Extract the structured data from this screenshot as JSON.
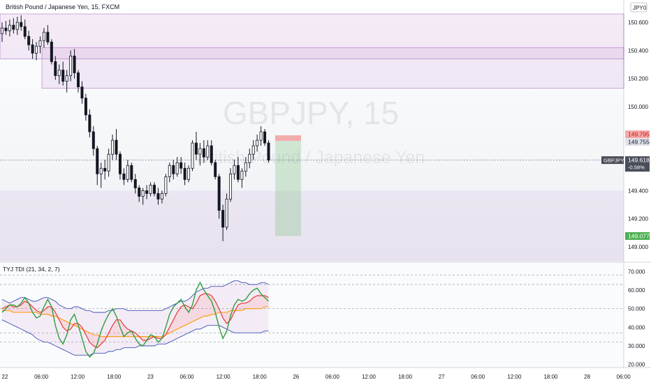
{
  "header": {
    "title": "British Pound / Japanese Yen, 15, FXCM",
    "currency_badge": "JPY",
    "currency_badge_suffix": "0"
  },
  "watermark": {
    "symbol": "GBPJPY, 15",
    "name": "British Pound / Japanese Yen"
  },
  "price_axis": {
    "ticks": [
      "150.600",
      "150.400",
      "150.200",
      "150.000",
      "149.400",
      "149.200",
      "149.000"
    ],
    "tick_values": [
      150.6,
      150.4,
      150.2,
      150.0,
      149.4,
      149.2,
      149.0
    ],
    "labels": {
      "stop": "149.795",
      "entry": "149.755",
      "symbol": "GBPJPY",
      "last": "149.618",
      "change": "-0.58%",
      "target": "149.077"
    },
    "label_values": {
      "stop": 149.795,
      "entry": 149.755,
      "last": 149.618,
      "target": 149.077
    }
  },
  "indicator": {
    "title": "TYJ TDI (21, 34, 2, 7)",
    "ticks": [
      "70.000",
      "60.000",
      "50.000",
      "40.000",
      "30.000",
      "20.000"
    ],
    "tick_values": [
      70,
      60,
      50,
      40,
      30,
      20
    ],
    "dashed_levels": [
      68,
      63,
      50,
      37,
      32
    ]
  },
  "time_axis": {
    "labels": [
      "22",
      "06:00",
      "12:00",
      "18:00",
      "23",
      "06:00",
      "12:00",
      "18:00",
      "26",
      "06:00",
      "12:00",
      "18:00",
      "27",
      "06:00",
      "12:00",
      "18:00",
      "28",
      "06:00"
    ]
  },
  "colors": {
    "up": "#131722",
    "zone_fill": "#9c27b0",
    "zone_border": "#7b1fa2",
    "stop": "#ef5350",
    "target": "#4caf50",
    "bb": "#3f51b5",
    "rsi": "#2e9e3a",
    "signal": "#e53935",
    "base": "#ff9800"
  },
  "chart_data": [
    {
      "type": "candlestick",
      "title": "British Pound / Japanese Yen, 15, FXCM",
      "ylim": [
        148.97,
        150.66
      ],
      "zones": [
        {
          "low": 150.13,
          "high": 150.42
        },
        {
          "low": 150.34,
          "high": 150.66
        }
      ],
      "position": {
        "direction": "short",
        "entry": 149.755,
        "stop": 149.795,
        "target": 149.077
      },
      "candles": [
        [
          150.52,
          150.6,
          150.46,
          150.56
        ],
        [
          150.56,
          150.61,
          150.51,
          150.54
        ],
        [
          150.54,
          150.62,
          150.5,
          150.58
        ],
        [
          150.58,
          150.63,
          150.52,
          150.55
        ],
        [
          150.55,
          150.64,
          150.51,
          150.6
        ],
        [
          150.6,
          150.65,
          150.54,
          150.57
        ],
        [
          150.57,
          150.62,
          150.48,
          150.5
        ],
        [
          150.5,
          150.54,
          150.4,
          150.44
        ],
        [
          150.44,
          150.48,
          150.34,
          150.38
        ],
        [
          150.38,
          150.46,
          150.33,
          150.43
        ],
        [
          150.43,
          150.5,
          150.38,
          150.47
        ],
        [
          150.47,
          150.56,
          150.42,
          150.53
        ],
        [
          150.53,
          150.58,
          150.44,
          150.46
        ],
        [
          150.46,
          150.48,
          150.3,
          150.32
        ],
        [
          150.32,
          150.36,
          150.19,
          150.22
        ],
        [
          150.22,
          150.3,
          150.16,
          150.26
        ],
        [
          150.26,
          150.32,
          150.15,
          150.18
        ],
        [
          150.18,
          150.26,
          150.1,
          150.22
        ],
        [
          150.22,
          150.4,
          150.18,
          150.36
        ],
        [
          150.36,
          150.41,
          150.2,
          150.24
        ],
        [
          150.24,
          150.26,
          150.1,
          150.14
        ],
        [
          150.14,
          150.18,
          150.02,
          150.06
        ],
        [
          150.06,
          150.09,
          149.9,
          149.94
        ],
        [
          149.94,
          149.98,
          149.78,
          149.82
        ],
        [
          149.82,
          149.86,
          149.65,
          149.7
        ],
        [
          149.7,
          149.72,
          149.44,
          149.52
        ],
        [
          149.52,
          149.6,
          149.42,
          149.56
        ],
        [
          149.56,
          149.62,
          149.48,
          149.54
        ],
        [
          149.54,
          149.7,
          149.5,
          149.66
        ],
        [
          149.66,
          149.8,
          149.62,
          149.76
        ],
        [
          149.76,
          149.84,
          149.62,
          149.66
        ],
        [
          149.66,
          149.68,
          149.48,
          149.52
        ],
        [
          149.52,
          149.56,
          149.44,
          149.48
        ],
        [
          149.48,
          149.62,
          149.46,
          149.58
        ],
        [
          149.58,
          149.6,
          149.46,
          149.48
        ],
        [
          149.48,
          149.52,
          149.38,
          149.42
        ],
        [
          149.42,
          149.44,
          149.32,
          149.36
        ],
        [
          149.36,
          149.42,
          149.3,
          149.4
        ],
        [
          149.4,
          149.44,
          149.34,
          149.38
        ],
        [
          149.38,
          149.46,
          149.36,
          149.44
        ],
        [
          149.44,
          149.46,
          149.36,
          149.38
        ],
        [
          149.38,
          149.42,
          149.3,
          149.34
        ],
        [
          149.34,
          149.4,
          149.31,
          149.38
        ],
        [
          149.38,
          149.52,
          149.36,
          149.5
        ],
        [
          149.5,
          149.6,
          149.46,
          149.58
        ],
        [
          149.58,
          149.62,
          149.48,
          149.52
        ],
        [
          149.52,
          149.64,
          149.5,
          149.6
        ],
        [
          149.6,
          149.64,
          149.52,
          149.56
        ],
        [
          149.56,
          149.6,
          149.44,
          149.48
        ],
        [
          149.48,
          149.58,
          149.46,
          149.56
        ],
        [
          149.56,
          149.76,
          149.54,
          149.74
        ],
        [
          149.74,
          149.82,
          149.62,
          149.66
        ],
        [
          149.66,
          149.74,
          149.58,
          149.7
        ],
        [
          149.7,
          149.76,
          149.6,
          149.64
        ],
        [
          149.64,
          149.76,
          149.62,
          149.72
        ],
        [
          149.72,
          149.76,
          149.58,
          149.6
        ],
        [
          149.6,
          149.62,
          149.48,
          149.5
        ],
        [
          149.5,
          149.52,
          149.2,
          149.26
        ],
        [
          149.26,
          149.3,
          149.04,
          149.14
        ],
        [
          149.14,
          149.38,
          149.12,
          149.34
        ],
        [
          149.34,
          149.56,
          149.32,
          149.52
        ],
        [
          149.52,
          149.62,
          149.48,
          149.58
        ],
        [
          149.58,
          149.64,
          149.46,
          149.48
        ],
        [
          149.48,
          149.56,
          149.42,
          149.54
        ],
        [
          149.54,
          149.64,
          149.5,
          149.6
        ],
        [
          149.6,
          149.7,
          149.56,
          149.66
        ],
        [
          149.66,
          149.76,
          149.62,
          149.72
        ],
        [
          149.72,
          149.8,
          149.68,
          149.76
        ],
        [
          149.76,
          149.86,
          149.72,
          149.82
        ],
        [
          149.82,
          149.84,
          149.72,
          149.74
        ],
        [
          149.74,
          149.76,
          149.6,
          149.618
        ]
      ]
    },
    {
      "type": "line",
      "title": "TYJ TDI (21, 34, 2, 7)",
      "ylim": [
        18,
        72
      ],
      "x_count": 71,
      "series": [
        {
          "key": "bb_upper",
          "values": [
            55,
            54,
            53,
            54,
            55,
            56,
            56,
            55,
            54,
            54,
            55,
            56,
            56,
            55,
            54,
            52,
            51,
            50,
            50,
            51,
            51,
            50,
            49,
            49,
            48,
            48,
            48,
            48,
            49,
            49,
            50,
            50,
            50,
            49,
            49,
            49,
            49,
            49,
            49,
            49,
            49,
            49,
            49,
            50,
            51,
            52,
            53,
            54,
            54,
            55,
            57,
            59,
            60,
            61,
            61,
            62,
            62,
            62,
            62,
            63,
            64,
            65,
            65,
            64,
            64,
            63,
            63,
            63,
            64,
            64,
            63
          ]
        },
        {
          "key": "bb_lower",
          "values": [
            44,
            43,
            42,
            41,
            40,
            39,
            38,
            37,
            36,
            34,
            33,
            32,
            32,
            31,
            30,
            29,
            28,
            27,
            26,
            25,
            25,
            25,
            25,
            25,
            26,
            26,
            26,
            26,
            27,
            27,
            28,
            28,
            29,
            29,
            29,
            29,
            30,
            30,
            30,
            30,
            30,
            31,
            31,
            31,
            32,
            33,
            34,
            35,
            36,
            37,
            38,
            39,
            39,
            40,
            41,
            41,
            41,
            41,
            40,
            39,
            38,
            37,
            37,
            37,
            37,
            37,
            37,
            37,
            37,
            38,
            38
          ]
        },
        {
          "key": "base",
          "values": [
            49,
            49,
            49,
            48,
            48,
            48,
            48,
            48,
            48,
            48,
            47,
            47,
            47,
            46,
            46,
            45,
            44,
            43,
            42,
            41,
            40,
            39,
            38,
            37,
            36,
            36,
            35,
            35,
            35,
            35,
            35,
            35,
            35,
            35,
            35,
            35,
            35,
            35,
            35,
            35,
            35,
            35,
            35,
            36,
            37,
            38,
            39,
            40,
            41,
            42,
            43,
            44,
            45,
            46,
            46,
            47,
            47,
            48,
            48,
            48,
            49,
            49,
            49,
            49,
            50,
            50,
            50,
            50,
            50,
            51,
            51
          ]
        },
        {
          "key": "signal",
          "values": [
            50,
            51,
            52,
            51,
            51,
            52,
            54,
            53,
            51,
            49,
            48,
            49,
            51,
            51,
            48,
            44,
            40,
            38,
            39,
            42,
            42,
            40,
            36,
            32,
            30,
            29,
            31,
            33,
            37,
            41,
            44,
            44,
            41,
            39,
            38,
            37,
            35,
            33,
            33,
            34,
            35,
            34,
            34,
            36,
            40,
            44,
            48,
            51,
            52,
            51,
            50,
            53,
            57,
            58,
            58,
            57,
            54,
            50,
            45,
            42,
            44,
            48,
            52,
            53,
            53,
            54,
            56,
            57,
            57,
            57,
            56
          ]
        },
        {
          "key": "rsi",
          "values": [
            48,
            50,
            52,
            52,
            51,
            53,
            56,
            53,
            48,
            45,
            46,
            51,
            55,
            51,
            41,
            34,
            31,
            36,
            44,
            47,
            41,
            34,
            27,
            24,
            26,
            31,
            38,
            43,
            47,
            50,
            46,
            40,
            35,
            37,
            38,
            34,
            31,
            30,
            33,
            36,
            35,
            32,
            34,
            40,
            47,
            51,
            53,
            55,
            51,
            48,
            52,
            60,
            64,
            60,
            57,
            54,
            48,
            40,
            34,
            38,
            46,
            52,
            55,
            54,
            55,
            58,
            60,
            61,
            58,
            56,
            54
          ]
        }
      ]
    }
  ]
}
